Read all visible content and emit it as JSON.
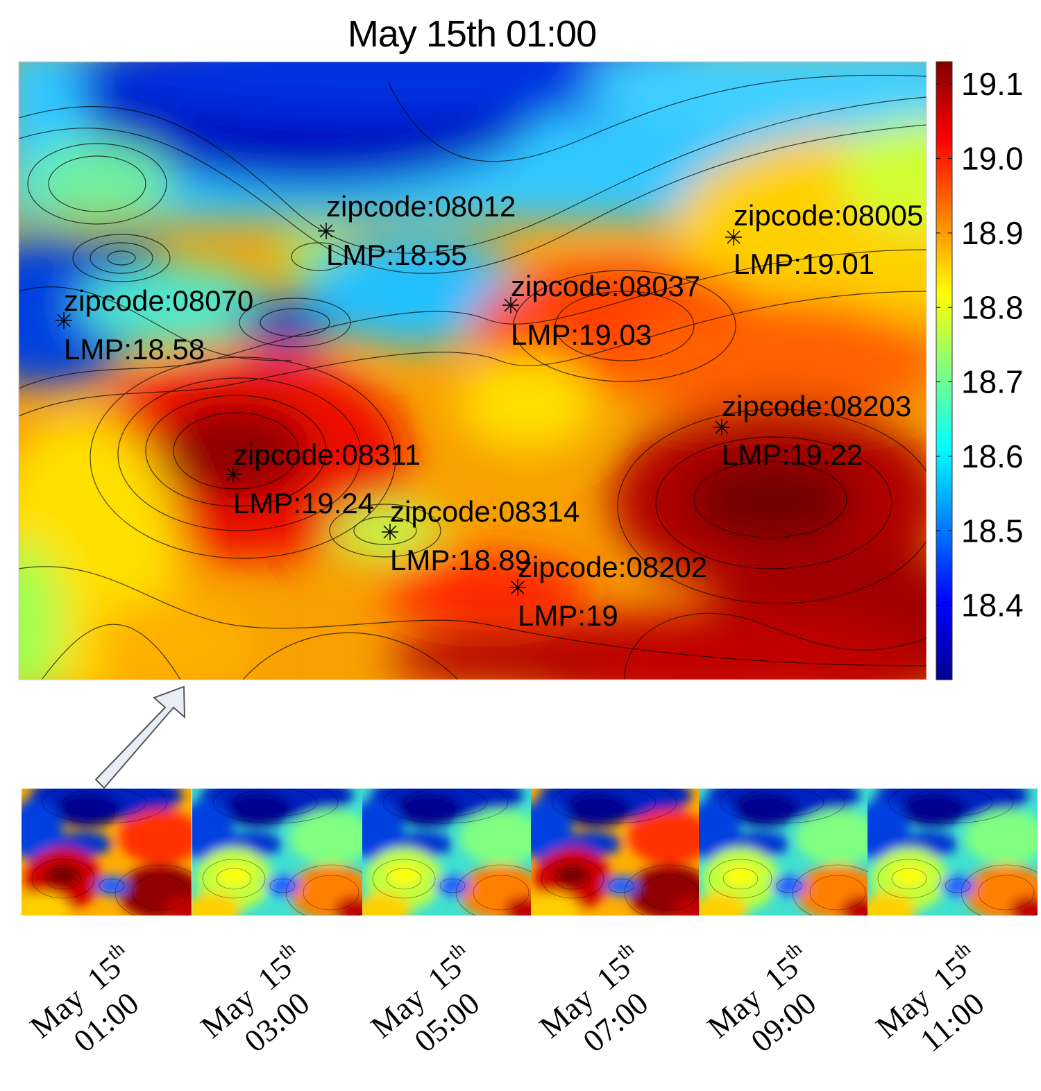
{
  "title": "May 15th 01:00",
  "chart_data": {
    "type": "heatmap",
    "title": "May 15th 01:00",
    "colormap": "jet",
    "colorbar": {
      "min": 18.3,
      "max": 19.13,
      "ticks": [
        "19.1",
        "19.0",
        "18.9",
        "18.8",
        "18.7",
        "18.6",
        "18.5",
        "18.4"
      ],
      "tick_values": [
        19.1,
        19.0,
        18.9,
        18.8,
        18.7,
        18.6,
        18.5,
        18.4
      ]
    },
    "points": [
      {
        "zipcode": "zipcode:08012",
        "lmp": "LMP:18.55",
        "value": 18.55
      },
      {
        "zipcode": "zipcode:08005",
        "lmp": "LMP:19.01",
        "value": 19.01
      },
      {
        "zipcode": "zipcode:08037",
        "lmp": "LMP:19.03",
        "value": 19.03
      },
      {
        "zipcode": "zipcode:08070",
        "lmp": "LMP:18.58",
        "value": 18.58
      },
      {
        "zipcode": "zipcode:08203",
        "lmp": "LMP:19.22",
        "value": 19.22
      },
      {
        "zipcode": "zipcode:08311",
        "lmp": "LMP:19.24",
        "value": 19.24
      },
      {
        "zipcode": "zipcode:08314",
        "lmp": "LMP:18.89",
        "value": 18.89
      },
      {
        "zipcode": "zipcode:08202",
        "lmp": "LMP:19",
        "value": 19.0
      }
    ],
    "thumbnails": [
      {
        "month": "May",
        "day": "15",
        "suffix": "th",
        "time": "01:00"
      },
      {
        "month": "May",
        "day": "15",
        "suffix": "th",
        "time": "03:00"
      },
      {
        "month": "May",
        "day": "15",
        "suffix": "th",
        "time": "05:00"
      },
      {
        "month": "May",
        "day": "15",
        "suffix": "th",
        "time": "07:00"
      },
      {
        "month": "May",
        "day": "15",
        "suffix": "th",
        "time": "09:00"
      },
      {
        "month": "May",
        "day": "15",
        "suffix": "th",
        "time": "11:00"
      }
    ]
  }
}
